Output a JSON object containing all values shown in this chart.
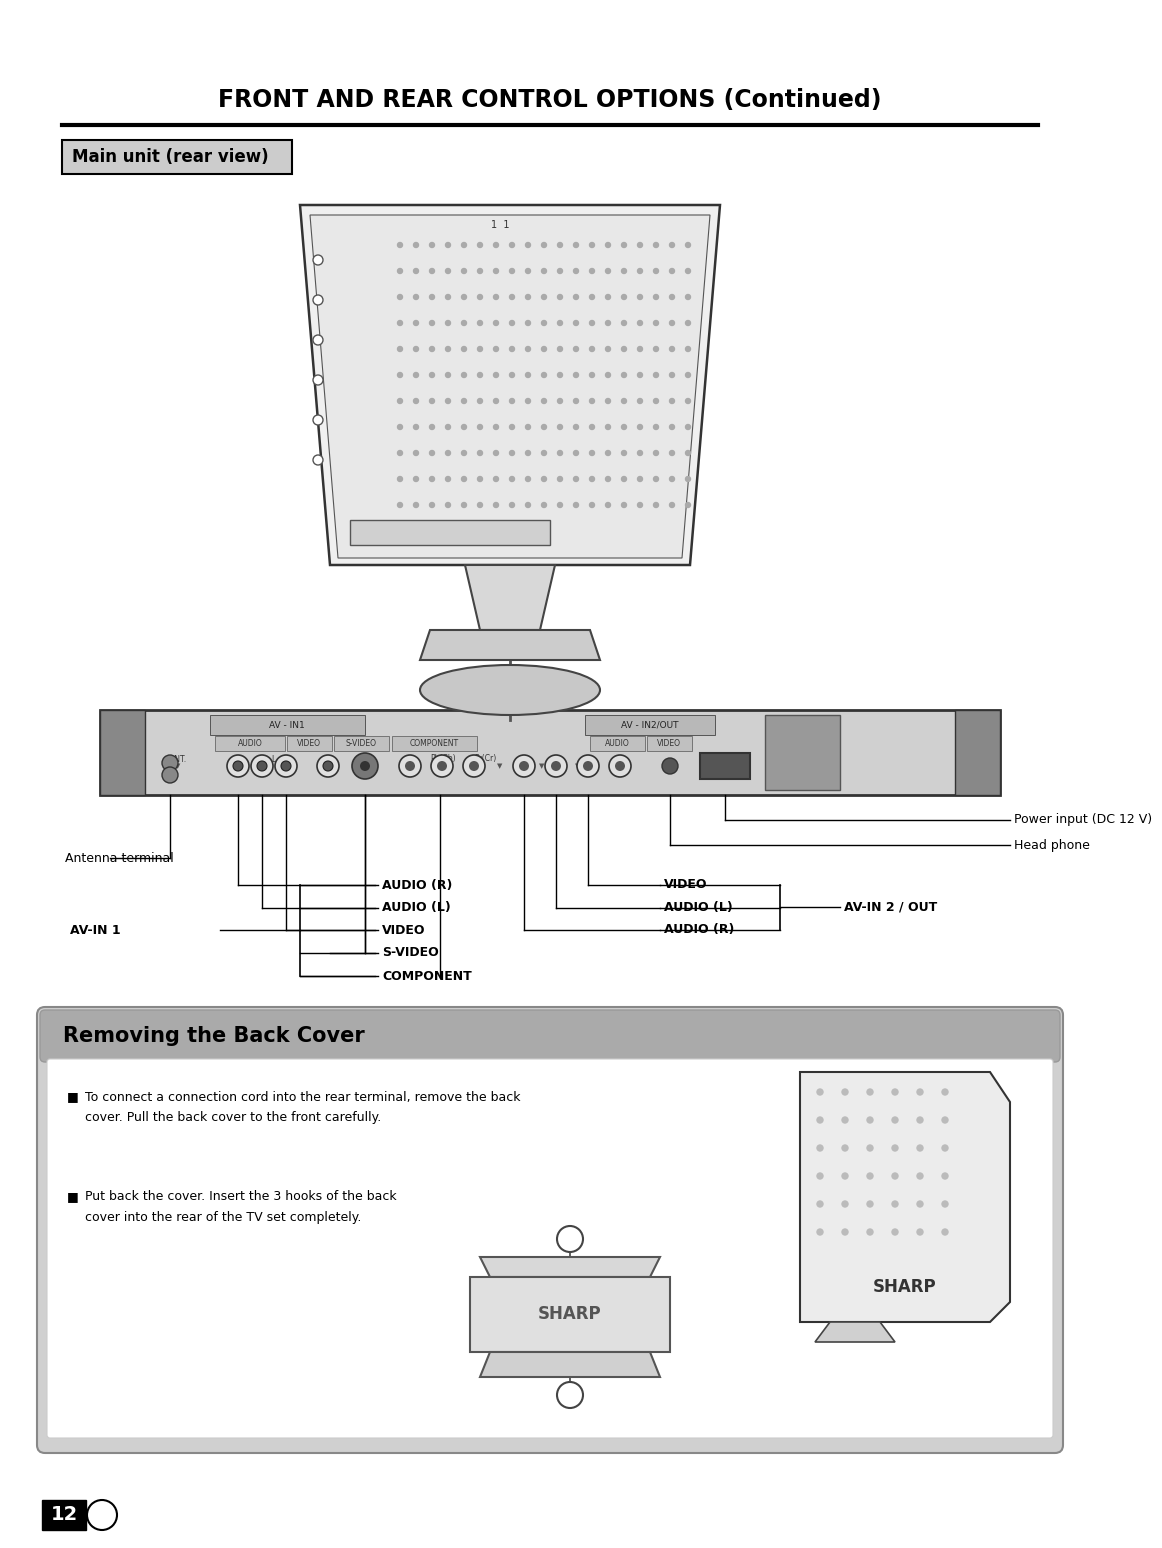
{
  "title": "FRONT AND REAR CONTROL OPTIONS (Continued)",
  "section1_title": "Main unit (rear view)",
  "section2_title": "Removing the Back Cover",
  "bg_color": "#ffffff",
  "page_number": "12",
  "removing_text1a": "To connect a connection cord into the rear terminal, remove the back",
  "removing_text1b": "cover. Pull the back cover to the front carefully.",
  "removing_text2a": "Put back the cover. Insert the 3 hooks of the back",
  "removing_text2b": "cover into the rear of the TV set completely.",
  "left_labels": [
    "AUDIO (R)",
    "AUDIO (L)",
    "VIDEO",
    "S-VIDEO",
    "COMPONENT"
  ],
  "avin1_label": "AV-IN 1",
  "right_labels": [
    "VIDEO",
    "AUDIO (L)",
    "AUDIO (R)"
  ],
  "avin2_label": "AV-IN 2 / OUT",
  "label_antenna": "Antenna terminal",
  "label_power": "Power input (DC 12 V)",
  "label_head": "Head phone"
}
